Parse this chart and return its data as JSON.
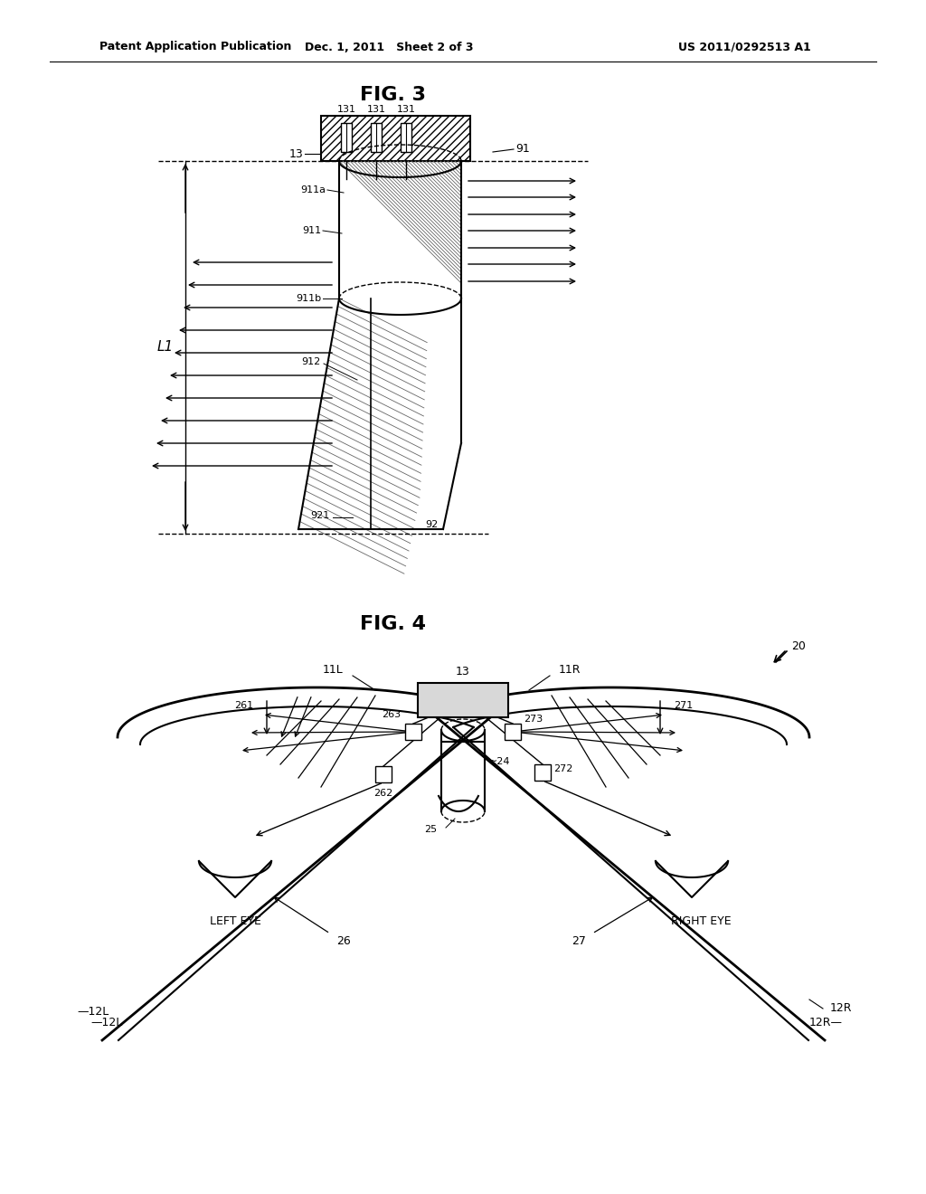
{
  "background_color": "#ffffff",
  "header_left": "Patent Application Publication",
  "header_center": "Dec. 1, 2011   Sheet 2 of 3",
  "header_right": "US 2011/0292513 A1",
  "fig3_title": "FIG. 3",
  "fig4_title": "FIG. 4",
  "line_color": "#000000",
  "text_color": "#000000"
}
